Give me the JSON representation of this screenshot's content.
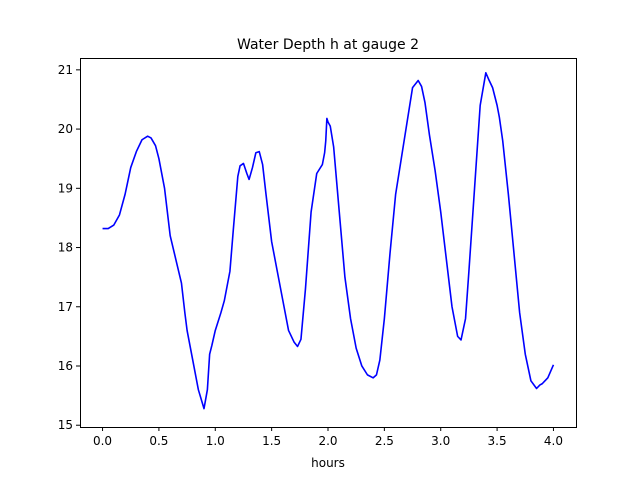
{
  "chart_data": {
    "type": "line",
    "title": "Water Depth h at gauge 2",
    "xlabel": "hours",
    "ylabel": "",
    "xlim": [
      -0.2,
      4.2
    ],
    "ylim": [
      14.97,
      21.2
    ],
    "xticks": [
      0.0,
      0.5,
      1.0,
      1.5,
      2.0,
      2.5,
      3.0,
      3.5,
      4.0
    ],
    "xtick_labels": [
      "0.0",
      "0.5",
      "1.0",
      "1.5",
      "2.0",
      "2.5",
      "3.0",
      "3.5",
      "4.0"
    ],
    "yticks": [
      15,
      16,
      17,
      18,
      19,
      20,
      21
    ],
    "ytick_labels": [
      "15",
      "16",
      "17",
      "18",
      "19",
      "20",
      "21"
    ],
    "grid": false,
    "legend": "none",
    "series": [
      {
        "color": "#0000ff",
        "x": [
          0.0,
          0.05,
          0.1,
          0.15,
          0.2,
          0.25,
          0.3,
          0.35,
          0.4,
          0.43,
          0.47,
          0.5,
          0.55,
          0.6,
          0.65,
          0.7,
          0.73,
          0.75,
          0.8,
          0.85,
          0.9,
          0.93,
          0.95,
          0.97,
          1.0,
          1.05,
          1.08,
          1.1,
          1.13,
          1.16,
          1.2,
          1.22,
          1.25,
          1.28,
          1.3,
          1.33,
          1.36,
          1.39,
          1.42,
          1.45,
          1.5,
          1.55,
          1.6,
          1.65,
          1.7,
          1.73,
          1.76,
          1.8,
          1.85,
          1.9,
          1.95,
          1.97,
          1.98,
          1.99,
          2.0,
          2.02,
          2.05,
          2.1,
          2.15,
          2.2,
          2.25,
          2.3,
          2.35,
          2.4,
          2.43,
          2.46,
          2.5,
          2.55,
          2.6,
          2.65,
          2.7,
          2.75,
          2.8,
          2.83,
          2.86,
          2.9,
          2.95,
          3.0,
          3.05,
          3.1,
          3.15,
          3.18,
          3.22,
          3.25,
          3.3,
          3.35,
          3.4,
          3.43,
          3.46,
          3.48,
          3.5,
          3.52,
          3.55,
          3.6,
          3.65,
          3.7,
          3.75,
          3.8,
          3.85,
          3.88,
          3.9,
          3.95,
          4.0
        ],
        "y": [
          18.32,
          18.32,
          18.38,
          18.55,
          18.9,
          19.35,
          19.62,
          19.82,
          19.88,
          19.85,
          19.72,
          19.5,
          19.0,
          18.2,
          17.8,
          17.4,
          16.9,
          16.6,
          16.1,
          15.6,
          15.28,
          15.6,
          16.2,
          16.35,
          16.6,
          16.9,
          17.1,
          17.3,
          17.6,
          18.3,
          19.2,
          19.38,
          19.42,
          19.25,
          19.15,
          19.35,
          19.6,
          19.62,
          19.4,
          18.9,
          18.1,
          17.6,
          17.1,
          16.6,
          16.4,
          16.33,
          16.45,
          17.3,
          18.6,
          19.25,
          19.4,
          19.6,
          19.8,
          20.18,
          20.12,
          20.05,
          19.7,
          18.6,
          17.5,
          16.8,
          16.3,
          16.0,
          15.85,
          15.8,
          15.85,
          16.1,
          16.8,
          17.9,
          18.9,
          19.5,
          20.1,
          20.7,
          20.82,
          20.72,
          20.45,
          19.9,
          19.3,
          18.6,
          17.8,
          17.0,
          16.5,
          16.44,
          16.8,
          17.6,
          19.0,
          20.4,
          20.95,
          20.82,
          20.7,
          20.55,
          20.4,
          20.2,
          19.8,
          18.9,
          17.9,
          16.9,
          16.2,
          15.75,
          15.62,
          15.68,
          15.7,
          15.8,
          16.02
        ]
      }
    ]
  }
}
